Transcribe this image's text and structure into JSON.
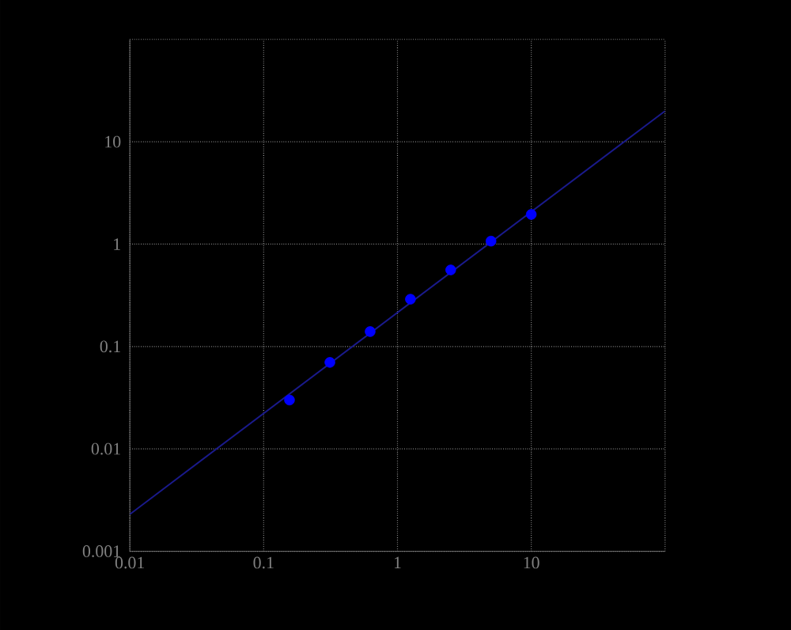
{
  "chart_data": {
    "type": "line",
    "log": "xy",
    "grid": true,
    "xlim": [
      0.01,
      100
    ],
    "ylim": [
      0.001,
      100
    ],
    "xticks": [
      0.01,
      0.1,
      1,
      10,
      {
        "value": 100,
        "label": null
      }
    ],
    "yticks": [
      0.001,
      0.01,
      0.1,
      1,
      10,
      {
        "value": 100,
        "label": null
      }
    ],
    "series": [
      {
        "type": "scatter",
        "marker": "circle",
        "color": "#0000ff",
        "x": [
          0.156,
          0.3125,
          0.625,
          1.25,
          2.5,
          5,
          10
        ],
        "values": [
          0.03,
          0.07,
          0.14,
          0.29,
          0.56,
          1.07,
          1.95
        ]
      },
      {
        "marker": "none",
        "color": "#1a1a8c",
        "x": [
          0.01,
          100
        ],
        "values": [
          0.0023,
          20
        ]
      }
    ]
  }
}
